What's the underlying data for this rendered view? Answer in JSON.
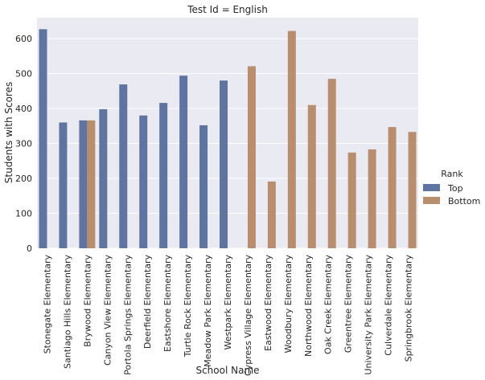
{
  "chart_data": {
    "type": "bar",
    "title": "Test Id = English",
    "xlabel": "School Name",
    "ylabel": "Students with Scores",
    "ylim": [
      0,
      660
    ],
    "yticks": [
      0,
      100,
      200,
      300,
      400,
      500,
      600
    ],
    "grid": true,
    "legend_position": "right",
    "legend_title": "Rank",
    "categories": [
      "Stonegate Elementary",
      "Santiago Hills Elementary",
      "Brywood Elementary",
      "Canyon View Elementary",
      "Portola Springs Elementary",
      "Deerfield Elementary",
      "Eastshore Elementary",
      "Turtle Rock Elementary",
      "Meadow Park Elementary",
      "Westpark Elementary",
      "Cypress Village Elementary",
      "Eastwood Elementary",
      "Woodbury Elementary",
      "Northwood Elementary",
      "Oak Creek Elementary",
      "Greentree Elementary",
      "University Park Elementary",
      "Culverdale Elementary",
      "Springbrook Elementary"
    ],
    "series": [
      {
        "name": "Top",
        "color": "#5f74a0",
        "values": [
          627,
          360,
          366,
          398,
          469,
          380,
          416,
          494,
          352,
          480,
          null,
          null,
          null,
          null,
          null,
          null,
          null,
          null,
          null
        ]
      },
      {
        "name": "Bottom",
        "color": "#b98e6f",
        "values": [
          null,
          null,
          366,
          null,
          null,
          null,
          null,
          null,
          null,
          null,
          521,
          191,
          622,
          410,
          485,
          274,
          283,
          347,
          333
        ]
      }
    ]
  },
  "colors": {
    "plot_background": "#eaeaf2",
    "grid": "#ffffff"
  }
}
